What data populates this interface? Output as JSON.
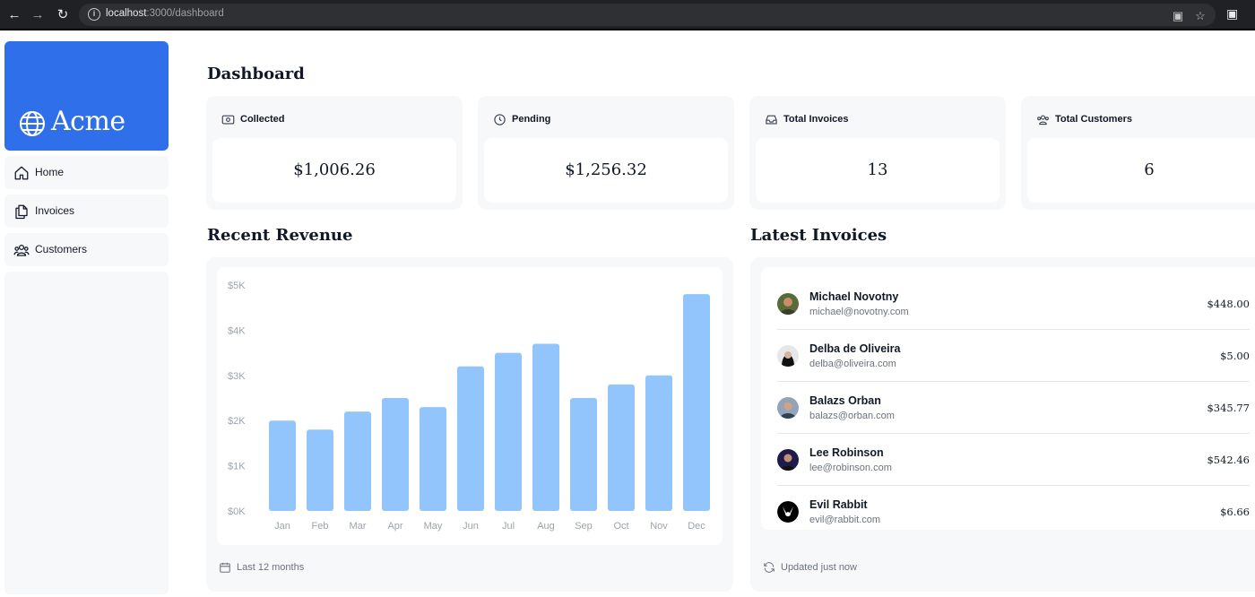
{
  "browser": {
    "url_host": "localhost",
    "url_path": ":3000/dashboard"
  },
  "sidebar": {
    "logo_text": "Acme",
    "items": [
      {
        "label": "Home",
        "icon": "home-icon"
      },
      {
        "label": "Invoices",
        "icon": "documents-icon"
      },
      {
        "label": "Customers",
        "icon": "users-icon"
      }
    ]
  },
  "page": {
    "title": "Dashboard"
  },
  "cards": [
    {
      "label": "Collected",
      "value": "$1,006.26",
      "icon": "banknote-icon"
    },
    {
      "label": "Pending",
      "value": "$1,256.32",
      "icon": "clock-icon"
    },
    {
      "label": "Total Invoices",
      "value": "13",
      "icon": "inbox-icon"
    },
    {
      "label": "Total Customers",
      "value": "6",
      "icon": "users-icon"
    }
  ],
  "revenue": {
    "title": "Recent Revenue",
    "footer": "Last 12 months"
  },
  "chart_data": {
    "type": "bar",
    "categories": [
      "Jan",
      "Feb",
      "Mar",
      "Apr",
      "May",
      "Jun",
      "Jul",
      "Aug",
      "Sep",
      "Oct",
      "Nov",
      "Dec"
    ],
    "values": [
      2000,
      1800,
      2200,
      2500,
      2300,
      3200,
      3500,
      3700,
      2500,
      2800,
      3000,
      4800
    ],
    "ylim": [
      0,
      5000
    ],
    "yticks": [
      "$0K",
      "$1K",
      "$2K",
      "$3K",
      "$4K",
      "$5K"
    ],
    "title": "",
    "xlabel": "",
    "ylabel": "",
    "color": "#93c5fd",
    "grid": false
  },
  "latest": {
    "title": "Latest Invoices",
    "footer": "Updated just now",
    "rows": [
      {
        "name": "Michael Novotny",
        "email": "michael@novotny.com",
        "amount": "$448.00"
      },
      {
        "name": "Delba de Oliveira",
        "email": "delba@oliveira.com",
        "amount": "$5.00"
      },
      {
        "name": "Balazs Orban",
        "email": "balazs@orban.com",
        "amount": "$345.77"
      },
      {
        "name": "Lee Robinson",
        "email": "lee@robinson.com",
        "amount": "$542.46"
      },
      {
        "name": "Evil Rabbit",
        "email": "evil@rabbit.com",
        "amount": "$6.66"
      }
    ]
  },
  "colors": {
    "brand": "#2f6fea",
    "panel": "#f7f8fa",
    "bar": "#93c5fd"
  }
}
